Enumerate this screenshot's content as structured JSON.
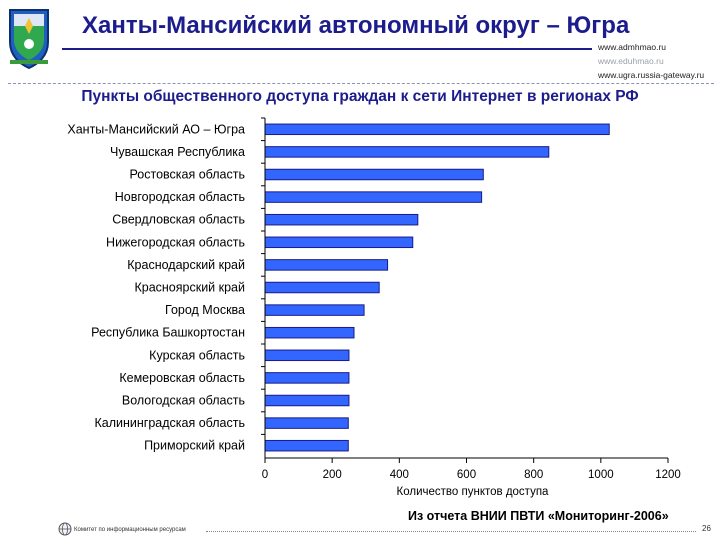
{
  "header": {
    "title": "Ханты-Мансийский автономный округ – Югра",
    "links": [
      "www.admhmao.ru",
      "www.eduhmao.ru",
      "www.ugra.russia-gateway.ru"
    ]
  },
  "colors": {
    "bar_fill": "#3366ff",
    "bar_stroke": "#1a1a8a",
    "title_blue": "#1c1c8c"
  },
  "chart_data": {
    "type": "bar",
    "orientation": "horizontal",
    "title": "Пункты общественного доступа граждан к сети Интернет в регионах РФ",
    "xlabel": "Количество пунктов доступа",
    "ylabel": "",
    "xlim": [
      0,
      1200
    ],
    "x_ticks": [
      0,
      200,
      400,
      600,
      800,
      1000,
      1200
    ],
    "categories": [
      "Ханты-Мансийский АО – Югра",
      "Чувашская Республика",
      "Ростовская область",
      "Новгородская область",
      "Свердловская область",
      "Нижегородская область",
      "Краснодарский край",
      "Красноярский край",
      "Город Москва",
      "Республика Башкортостан",
      "Курская область",
      "Кемеровская область",
      "Вологодская область",
      "Калининградская область",
      "Приморский край"
    ],
    "values": [
      1025,
      845,
      650,
      645,
      455,
      440,
      365,
      340,
      295,
      265,
      250,
      250,
      250,
      248,
      248
    ],
    "grid": false,
    "legend": "none"
  },
  "source_note": "Из отчета ВНИИ ПВТИ «Мониторинг-2006»",
  "footer": {
    "org": "Комитет по информационным ресурсам",
    "page_number": "26"
  }
}
